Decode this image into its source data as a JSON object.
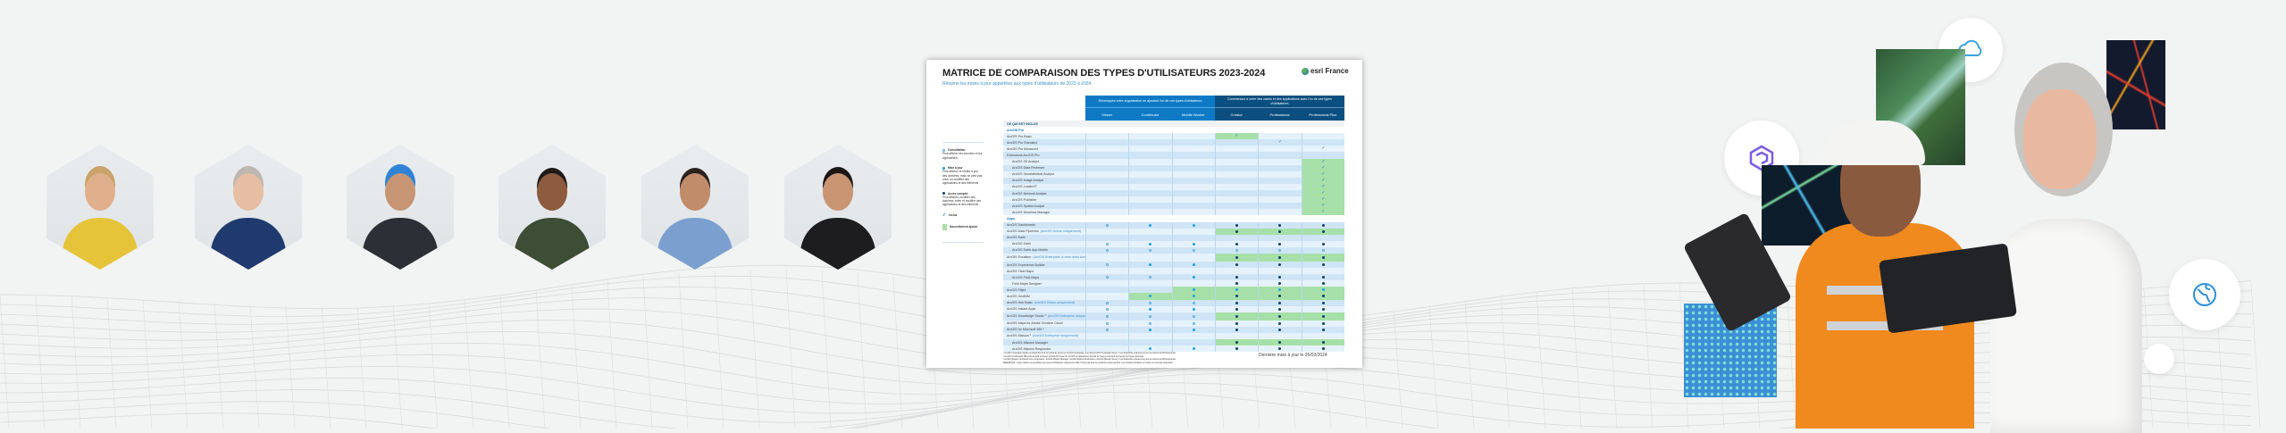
{
  "document": {
    "title": "MATRICE DE COMPARAISON DES TYPES D'UTILISATEURS 2023-2024",
    "subtitle": "Résume les mises à jour apportées aux types d'utilisateurs de 2023 à 2024",
    "logo": "esri France",
    "group_left": "Développez votre organisation en ajoutant l'un de ces types d'utilisateurs",
    "group_right": "Commencez à créer des cartes et des applications avec l'un de ces types d'utilisateurs",
    "columns": [
      "Viewer",
      "Contributor",
      "Mobile Worker",
      "Creator",
      "Professional",
      "Professional Plus"
    ],
    "section_included": "CE QUI EST INCLUS",
    "groups": [
      {
        "title": "ArcGIS Pro",
        "rows": [
          {
            "label": "ArcGIS Pro Basic",
            "cells": [
              "",
              "",
              "",
              "c",
              "",
              ""
            ],
            "new": [
              0,
              0,
              0,
              1,
              0,
              0
            ]
          },
          {
            "label": "ArcGIS Pro Standard",
            "cells": [
              "",
              "",
              "",
              "",
              "c",
              ""
            ],
            "new": [
              0,
              0,
              0,
              0,
              0,
              0
            ]
          },
          {
            "label": "ArcGIS Pro Advanced",
            "cells": [
              "",
              "",
              "",
              "",
              "",
              "c"
            ],
            "new": [
              0,
              0,
              0,
              0,
              0,
              0
            ]
          },
          {
            "label": "Extensions ArcGIS Pro",
            "cells": [
              "",
              "",
              "",
              "",
              "",
              ""
            ],
            "new": [
              0,
              0,
              0,
              0,
              0,
              0
            ]
          },
          {
            "label": "ArcGIS 3D Analyst",
            "indent": true,
            "cells": [
              "",
              "",
              "",
              "",
              "",
              "c"
            ],
            "new": [
              0,
              0,
              0,
              0,
              0,
              1
            ]
          },
          {
            "label": "ArcGIS Data Reviewer",
            "indent": true,
            "cells": [
              "",
              "",
              "",
              "",
              "",
              "c"
            ],
            "new": [
              0,
              0,
              0,
              0,
              0,
              1
            ]
          },
          {
            "label": "ArcGIS Geostatistical Analyst",
            "indent": true,
            "cells": [
              "",
              "",
              "",
              "",
              "",
              "c"
            ],
            "new": [
              0,
              0,
              0,
              0,
              0,
              1
            ]
          },
          {
            "label": "ArcGIS Image Analyst",
            "indent": true,
            "cells": [
              "",
              "",
              "",
              "",
              "",
              "c"
            ],
            "new": [
              0,
              0,
              0,
              0,
              0,
              1
            ]
          },
          {
            "label": "ArcGIS LocateXT",
            "indent": true,
            "cells": [
              "",
              "",
              "",
              "",
              "",
              "c"
            ],
            "new": [
              0,
              0,
              0,
              0,
              0,
              1
            ]
          },
          {
            "label": "ArcGIS Network Analyst",
            "indent": true,
            "cells": [
              "",
              "",
              "",
              "",
              "",
              "c"
            ],
            "new": [
              0,
              0,
              0,
              0,
              0,
              1
            ]
          },
          {
            "label": "ArcGIS Publisher",
            "indent": true,
            "cells": [
              "",
              "",
              "",
              "",
              "",
              "c"
            ],
            "new": [
              0,
              0,
              0,
              0,
              0,
              1
            ]
          },
          {
            "label": "ArcGIS Spatial Analyst",
            "indent": true,
            "cells": [
              "",
              "",
              "",
              "",
              "",
              "c"
            ],
            "new": [
              0,
              0,
              0,
              0,
              0,
              1
            ]
          },
          {
            "label": "ArcGIS Workflow Manager",
            "indent": true,
            "cells": [
              "",
              "",
              "",
              "",
              "",
              "c"
            ],
            "new": [
              0,
              0,
              0,
              0,
              0,
              1
            ]
          }
        ]
      },
      {
        "title": "Apps",
        "rows": [
          {
            "label": "ArcGIS Dashboards",
            "cells": [
              "o",
              "b",
              "b",
              "d",
              "d",
              "d"
            ],
            "new": [
              0,
              0,
              0,
              0,
              0,
              0
            ]
          },
          {
            "label": "ArcGIS Data Pipelines",
            "note": "(ArcGIS Online uniquement)",
            "cells": [
              "",
              "",
              "",
              "d",
              "d",
              "d"
            ],
            "new": [
              0,
              0,
              0,
              1,
              1,
              1
            ]
          },
          {
            "label": "ArcGIS Earth",
            "cells": [
              "",
              "",
              "",
              "",
              "",
              ""
            ],
            "new": [
              0,
              0,
              0,
              0,
              0,
              0
            ]
          },
          {
            "label": "ArcGIS Earth",
            "indent": true,
            "cells": [
              "o",
              "b",
              "b",
              "d",
              "d",
              "d"
            ],
            "new": [
              0,
              0,
              0,
              0,
              0,
              0
            ]
          },
          {
            "label": "ArcGIS Earth App Mobile",
            "indent": true,
            "cells": [
              "o",
              "o",
              "o",
              "o",
              "o",
              "o"
            ],
            "new": [
              0,
              0,
              0,
              0,
              0,
              0
            ]
          },
          {
            "label": "ArcGIS Excalibur",
            "note": "(ArcGIS Enterprise, à venir dans ArcGIS Online automne 2024)",
            "tall": true,
            "cells": [
              "",
              "",
              "",
              "d",
              "d",
              "d"
            ],
            "new": [
              0,
              0,
              0,
              1,
              1,
              1
            ]
          },
          {
            "label": "ArcGIS Experience Builder",
            "cells": [
              "o",
              "b",
              "b",
              "d",
              "d",
              "d"
            ],
            "new": [
              0,
              0,
              0,
              0,
              0,
              0
            ]
          },
          {
            "label": "ArcGIS Field Maps",
            "cells": [
              "",
              "",
              "",
              "",
              "",
              ""
            ],
            "new": [
              0,
              0,
              0,
              0,
              0,
              0
            ]
          },
          {
            "label": "ArcGIS Field Maps",
            "indent": true,
            "cells": [
              "o",
              "o",
              "b",
              "d",
              "d",
              "d"
            ],
            "new": [
              0,
              0,
              0,
              0,
              0,
              0
            ]
          },
          {
            "label": "Field Maps Designer",
            "indent": true,
            "cells": [
              "",
              "",
              "",
              "d",
              "d",
              "d"
            ],
            "new": [
              0,
              0,
              0,
              0,
              0,
              0
            ]
          },
          {
            "label": "ArcGIS Flight",
            "cells": [
              "",
              "",
              "b",
              "b",
              "b",
              "b"
            ],
            "new": [
              0,
              0,
              1,
              1,
              1,
              1
            ]
          },
          {
            "label": "ArcGIS GeoBIM",
            "cells": [
              "",
              "b",
              "b",
              "d",
              "d",
              "d"
            ],
            "new": [
              0,
              1,
              1,
              1,
              1,
              1
            ]
          },
          {
            "label": "ArcGIS Hub Basic",
            "note": "(ArcGIS Online uniquement)",
            "cells": [
              "o",
              "o",
              "o",
              "d",
              "d",
              "d"
            ],
            "new": [
              0,
              0,
              0,
              0,
              0,
              0
            ]
          },
          {
            "label": "ArcGIS Instant Apps",
            "cells": [
              "o",
              "b",
              "b",
              "d",
              "d",
              "d"
            ],
            "new": [
              0,
              0,
              0,
              0,
              0,
              0
            ]
          },
          {
            "label": "ArcGIS Knowledge Studio ¹",
            "note": "(ArcGIS Enterprise uniquement)",
            "tall": true,
            "cells": [
              "o",
              "o",
              "o",
              "d",
              "d",
              "d"
            ],
            "new": [
              0,
              0,
              0,
              1,
              1,
              1
            ]
          },
          {
            "label": "ArcGIS Maps for Adobe Creative Cloud",
            "cells": [
              "o",
              "o",
              "o",
              "d",
              "d",
              "d"
            ],
            "new": [
              0,
              0,
              0,
              0,
              0,
              0
            ]
          },
          {
            "label": "ArcGIS for Microsoft 365 ²",
            "cells": [
              "o",
              "b",
              "b",
              "d",
              "d",
              "d"
            ],
            "new": [
              0,
              0,
              0,
              0,
              0,
              0
            ]
          },
          {
            "label": "ArcGIS Mission ³",
            "note": "(ArcGIS Enterprise uniquement)",
            "cells": [
              "",
              "",
              "",
              "",
              "",
              ""
            ],
            "new": [
              0,
              0,
              0,
              0,
              0,
              0
            ]
          },
          {
            "label": "ArcGIS Mission Manager",
            "indent": true,
            "cells": [
              "",
              "",
              "",
              "d",
              "d",
              "d"
            ],
            "new": [
              0,
              0,
              0,
              1,
              1,
              1
            ]
          },
          {
            "label": "ArcGIS Mission Responder",
            "indent": true,
            "cells": [
              "",
              "b",
              "b",
              "d",
              "d",
              "d"
            ],
            "new": [
              0,
              0,
              0,
              0,
              0,
              0
            ]
          }
        ]
      }
    ],
    "legend": [
      {
        "title": "Consultation",
        "desc": "Peut afficher les données et les applications"
      },
      {
        "title": "Mise à jour",
        "desc": "Peut afficher et mettre à jour des données, mais ne peut pas créer ou modifier des applications et des éléments"
      },
      {
        "title": "Accès complet",
        "desc": "Peut afficher, modifier des données, créer et modifier des applications et des éléments"
      },
      {
        "title": "Inclus",
        "desc": ""
      },
      {
        "title": "Nouvellement ajouté",
        "desc": ""
      }
    ],
    "footnotes": [
      "¹ ArcGIS Knowledge Studio est disponible lors de l'achat de la licence ArcGIS Knowledge, qui inclut ArcGIS Knowledge Server. Il est disponible uniquement pour les clients ArcGIS Enterprise.",
      "² ArcGIS for Microsoft 365 inclut ArcGIS for Excel, ArcGIS for Power BI, ArcGIS for SharePoint, ArcGIS for Teams et ArcGIS Connector for Power Automate.",
      "³ ArcGIS Mission comprend trois composants : ArcGIS Mission Manager, ArcGIS Mission Responder et ArcGIS Mission Server. Il est disponible uniquement pour les clients ArcGIS Enterprise.",
      "REMARQUE : Cette matrice est spécifique aux types d'utilisateurs uniquement. Elle n'inclut pas tous les produits vendus par Esri. Les produits obsolètes ou retirés ne sont pas répertoriés."
    ],
    "updated": "Dernière mise à jour le 05/03/2024"
  },
  "colors": {
    "new": "#a6e0a8",
    "header_left": "#0e7ac6",
    "header_right": "#0b4f80"
  }
}
